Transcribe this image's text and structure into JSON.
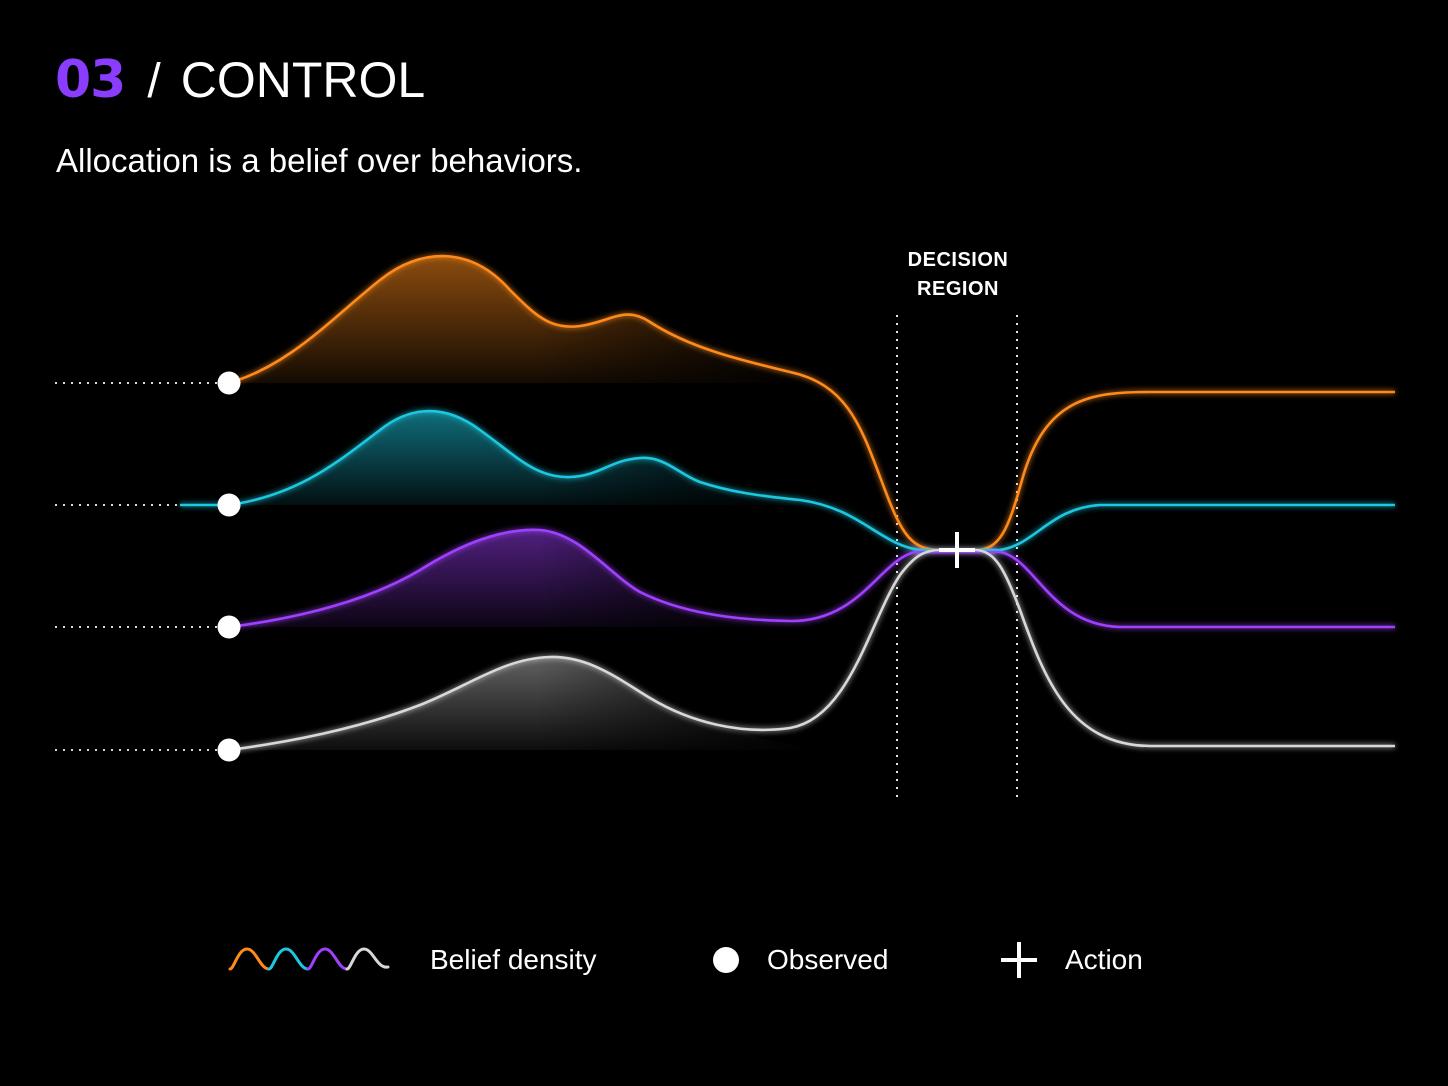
{
  "header": {
    "number": "03",
    "separator": "/",
    "title": "CONTROL"
  },
  "subtitle": "Allocation is a belief over behaviors.",
  "decision_region": {
    "line1": "DECISION",
    "line2": "REGION"
  },
  "legend": {
    "density_label": "Belief density",
    "observed_label": "Observed",
    "action_label": "Action"
  },
  "colors": {
    "accent": "#8b3dff",
    "background": "#000000",
    "series": [
      "#ff8a1a",
      "#1cc8e0",
      "#a040ff",
      "#d8d8d8"
    ]
  },
  "icons": {
    "observed": "circle-dot-icon",
    "action": "plus-icon",
    "density": "wave-icon"
  }
}
